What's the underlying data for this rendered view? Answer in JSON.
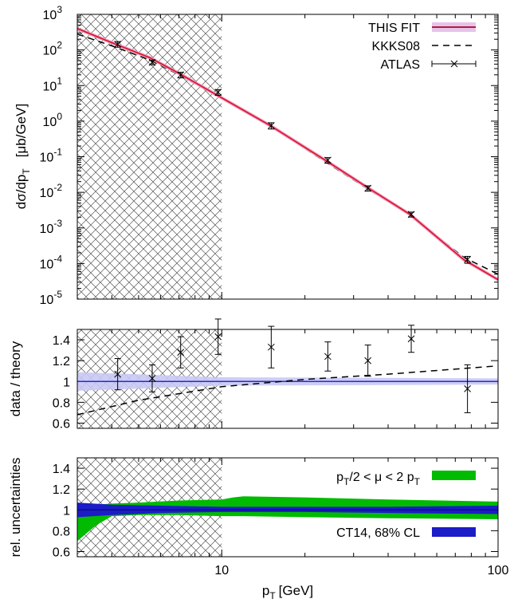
{
  "chart_data": [
    {
      "type": "line",
      "panel": "cross-section",
      "xscale": "log",
      "yscale": "log",
      "xlim": [
        3,
        100
      ],
      "ylim": [
        1e-05,
        1000
      ],
      "ylabel": "dσ/dp_T   [μb/GeV]",
      "ylabel_parts": [
        "dσ/dp",
        "T",
        "[μb/GeV]"
      ],
      "ytick_labels": [
        {
          "value": 1000,
          "base": "10",
          "exp": "3"
        },
        {
          "value": 100,
          "base": "10",
          "exp": "2"
        },
        {
          "value": 10,
          "base": "10",
          "exp": "1"
        },
        {
          "value": 1,
          "base": "10",
          "exp": "0"
        },
        {
          "value": 0.1,
          "base": "10",
          "exp": "-1"
        },
        {
          "value": 0.01,
          "base": "10",
          "exp": "-2"
        },
        {
          "value": 0.001,
          "base": "10",
          "exp": "-3"
        },
        {
          "value": 0.0001,
          "base": "10",
          "exp": "-4"
        },
        {
          "value": 1e-05,
          "base": "10",
          "exp": "-5"
        }
      ],
      "hatched_region_x": [
        3,
        10
      ],
      "legend_position": "top-right",
      "series": [
        {
          "name": "THIS FIT",
          "style": "red line with blue/pink band",
          "x": [
            3,
            4,
            5.5,
            7,
            10,
            15,
            24,
            34,
            48,
            75,
            100
          ],
          "y": [
            400,
            160,
            60,
            22,
            4.5,
            0.75,
            0.075,
            0.013,
            0.0024,
            0.00013,
            3.5e-05
          ]
        },
        {
          "name": "KKKS08",
          "style": "black dashed line",
          "x": [
            3,
            4,
            5.5,
            7,
            10,
            15,
            24,
            34,
            48,
            75,
            100
          ],
          "y": [
            280,
            130,
            52,
            20,
            4.3,
            0.72,
            0.068,
            0.012,
            0.0023,
            0.00015,
            5e-05
          ]
        },
        {
          "name": "ATLAS",
          "style": "crosses with error bars",
          "x": [
            4.2,
            5.6,
            7.1,
            9.7,
            15.1,
            24.2,
            33.8,
            48.5,
            77.5
          ],
          "y": [
            145,
            45,
            20,
            6.5,
            0.75,
            0.08,
            0.013,
            0.0024,
            0.00013
          ],
          "err_rel": [
            0.18,
            0.15,
            0.18,
            0.18,
            0.2,
            0.18,
            0.17,
            0.16,
            0.22
          ]
        }
      ]
    },
    {
      "type": "line",
      "panel": "ratio",
      "xscale": "log",
      "xlim": [
        3,
        100
      ],
      "ylim": [
        0.55,
        1.5
      ],
      "ylabel": "data / theory",
      "ytick_labels": [
        "0.6",
        "0.8",
        "1",
        "1.2",
        "1.4"
      ],
      "yticks": [
        0.6,
        0.8,
        1,
        1.2,
        1.4
      ],
      "hatched_region_x": [
        3,
        10
      ],
      "series": [
        {
          "name": "THIS FIT",
          "style": "band",
          "x": [
            3,
            10,
            100
          ],
          "center": [
            1,
            1,
            1
          ],
          "lower": [
            0.91,
            0.96,
            0.97
          ],
          "upper": [
            1.09,
            1.04,
            1.03
          ]
        },
        {
          "name": "KKKS08",
          "style": "dashed",
          "x": [
            3,
            5,
            10,
            20,
            40,
            100
          ],
          "y": [
            0.68,
            0.82,
            0.95,
            1.02,
            1.07,
            1.15
          ]
        },
        {
          "name": "ATLAS",
          "style": "crosses with error bars",
          "x": [
            4.2,
            5.6,
            7.1,
            9.7,
            15.1,
            24.2,
            33.8,
            48.5,
            77.5
          ],
          "y": [
            1.07,
            1.03,
            1.28,
            1.43,
            1.33,
            1.24,
            1.2,
            1.41,
            0.93
          ],
          "err": [
            0.15,
            0.13,
            0.15,
            0.17,
            0.2,
            0.14,
            0.15,
            0.13,
            0.23
          ]
        }
      ]
    },
    {
      "type": "area",
      "panel": "uncertainties",
      "xscale": "log",
      "xlim": [
        3,
        100
      ],
      "ylim": [
        0.55,
        1.5
      ],
      "ylabel": "rel. uncertainties",
      "ytick_labels": [
        "0.6",
        "0.8",
        "1",
        "1.2",
        "1.4"
      ],
      "yticks": [
        0.6,
        0.8,
        1,
        1.2,
        1.4
      ],
      "xlabel": "p_T [GeV]",
      "xlabel_parts": [
        "p",
        "T",
        "[GeV]"
      ],
      "xtick_labels": [
        {
          "value": 10,
          "label": "10"
        },
        {
          "value": 100,
          "label": "100"
        }
      ],
      "hatched_region_x": [
        3,
        10
      ],
      "series": [
        {
          "name": "p_T/2 < μ < 2 p_T",
          "name_parts": [
            "p",
            "T",
            "/2 < μ < 2 p",
            "T"
          ],
          "color": "#00bb00",
          "x": [
            3,
            3.5,
            4,
            5,
            7,
            10,
            11,
            12,
            20,
            40,
            100
          ],
          "lower": [
            0.7,
            0.85,
            0.94,
            0.95,
            0.95,
            0.94,
            0.94,
            0.94,
            0.93,
            0.92,
            0.91
          ],
          "upper": [
            1.05,
            1.05,
            1.06,
            1.07,
            1.09,
            1.1,
            1.12,
            1.13,
            1.12,
            1.1,
            1.08
          ]
        },
        {
          "name": "CT14, 68% CL",
          "color": "#1c1cc8",
          "x": [
            3,
            4,
            6,
            10,
            20,
            40,
            100
          ],
          "lower": [
            0.93,
            0.95,
            0.97,
            0.98,
            0.98,
            0.97,
            0.96
          ],
          "upper": [
            1.07,
            1.05,
            1.04,
            1.03,
            1.03,
            1.03,
            1.04
          ]
        }
      ]
    }
  ]
}
